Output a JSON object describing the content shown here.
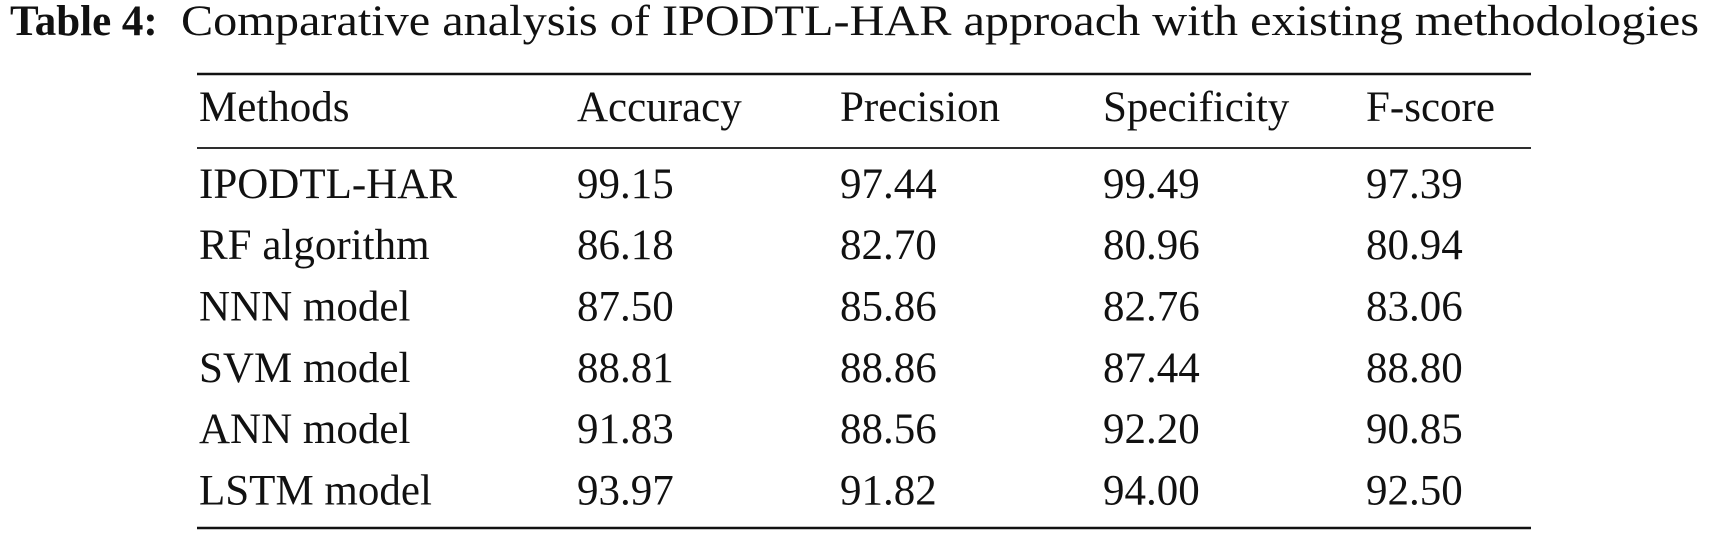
{
  "caption": {
    "label": "Table 4:",
    "text": "Comparative analysis of IPODTL-HAR approach with existing methodologies"
  },
  "table": {
    "header": [
      "Methods",
      "Accuracy",
      "Precision",
      "Specificity",
      "F-score"
    ],
    "rows": [
      [
        "IPODTL-HAR",
        "99.15",
        "97.44",
        "99.49",
        "97.39"
      ],
      [
        "RF algorithm",
        "86.18",
        "82.70",
        "80.96",
        "80.94"
      ],
      [
        "NNN model",
        "87.50",
        "85.86",
        "82.76",
        "83.06"
      ],
      [
        "SVM model",
        "88.81",
        "88.86",
        "87.44",
        "88.80"
      ],
      [
        "ANN model",
        "91.83",
        "88.56",
        "92.20",
        "90.85"
      ],
      [
        "LSTM model",
        "93.97",
        "91.82",
        "94.00",
        "92.50"
      ]
    ]
  }
}
